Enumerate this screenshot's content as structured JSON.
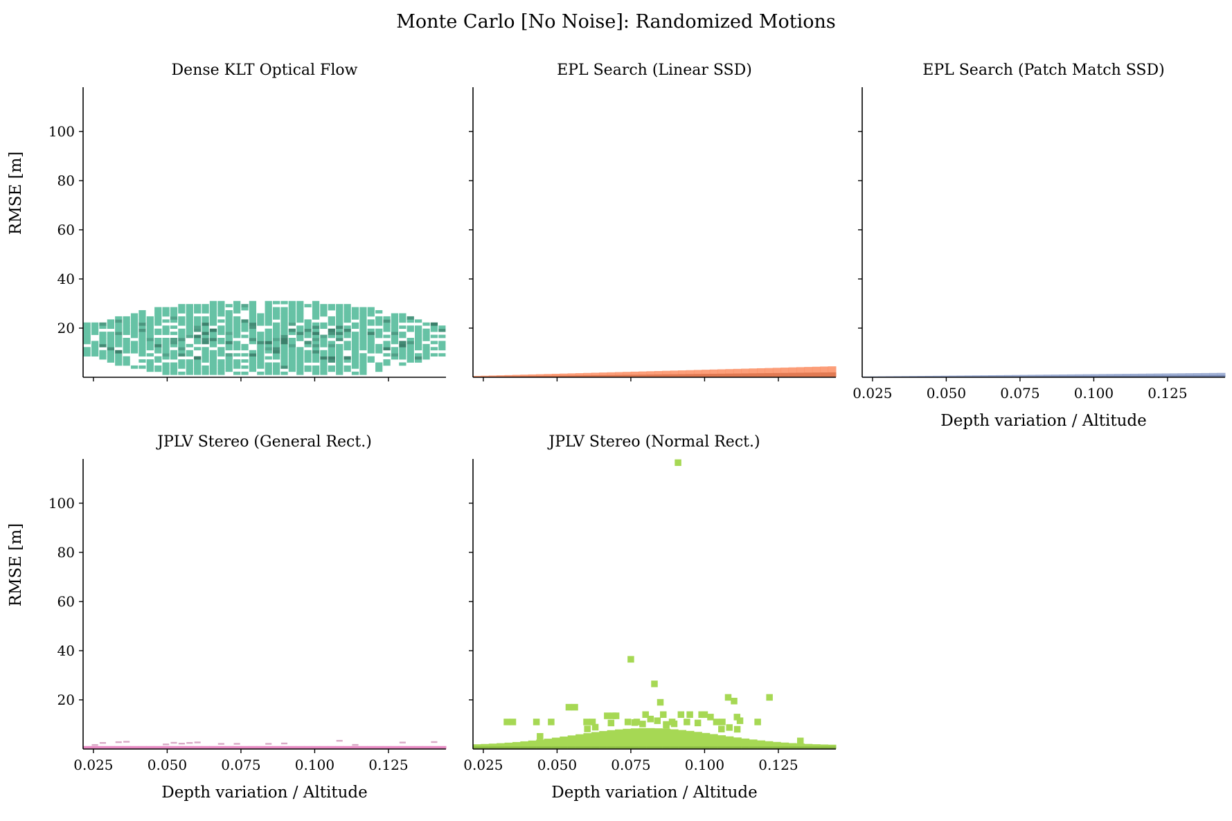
{
  "figure": {
    "title": "Monte Carlo [No Noise]: Randomized Motions"
  },
  "chart_data": {
    "type": "heatmap",
    "title": "Monte Carlo [No Noise]: Randomized Motions",
    "shared_axes": true,
    "xlim": [
      0.0215,
      0.1445
    ],
    "ylim": [
      0,
      118
    ],
    "xticks": [
      0.025,
      0.05,
      0.075,
      0.1,
      0.125
    ],
    "xtick_labels": [
      "0.025",
      "0.050",
      "0.075",
      "0.100",
      "0.125"
    ],
    "yticks": [
      20,
      40,
      60,
      80,
      100
    ],
    "ytick_labels": [
      "20",
      "40",
      "60",
      "80",
      "100"
    ],
    "xlabel": "Depth variation / Altitude",
    "ylabel": "RMSE [m]",
    "grid": false,
    "panels": [
      {
        "title": "Dense KLT Optical Flow",
        "color": "#66c2a5",
        "dark_color": "#2f6b59",
        "density": {
          "x_range": [
            0.0215,
            0.1445
          ],
          "y_center": 15,
          "y_spread": 15,
          "y_min": 1,
          "y_max": 31
        },
        "show_xlabel": false,
        "show_ylabel": true,
        "show_xticklabels": false,
        "show_yticklabels": true
      },
      {
        "title": "EPL Search (Linear SSD)",
        "color": "#fc8d62",
        "dark_color": "#b05836",
        "density": {
          "x_range": [
            0.0215,
            0.1445
          ],
          "y_at_xmin": 0.5,
          "y_at_xmax": 4.5,
          "y_min": 0
        },
        "show_xlabel": false,
        "show_ylabel": false,
        "show_xticklabels": false,
        "show_yticklabels": false
      },
      {
        "title": "EPL Search (Patch Match SSD)",
        "color": "#8da0cb",
        "dark_color": "#4f5f8a",
        "density": {
          "x_range": [
            0.0215,
            0.1445
          ],
          "y_at_xmin": 0.3,
          "y_at_xmax": 1.8,
          "y_min": 0
        },
        "show_xlabel": true,
        "show_ylabel": false,
        "show_xticklabels": true,
        "show_yticklabels": false
      },
      {
        "title": "JPLV Stereo (General Rect.)",
        "color": "#e78ac3",
        "dark_color": "#a34f82",
        "density": {
          "x_range": [
            0.0215,
            0.1445
          ],
          "y_center": 1.2,
          "y_max": 3.5,
          "y_min": 0
        },
        "show_xlabel": true,
        "show_ylabel": true,
        "show_xticklabels": true,
        "show_yticklabels": true
      },
      {
        "title": "JPLV Stereo (Normal Rect.)",
        "color": "#a6d854",
        "dark_color": "#5f8a2a",
        "density": {
          "x_range": [
            0.0215,
            0.1445
          ],
          "y_min": 0,
          "dense_y_max": 7
        },
        "outliers": [
          [
            0.091,
            116.5
          ],
          [
            0.075,
            36.5
          ],
          [
            0.083,
            26.5
          ],
          [
            0.085,
            19
          ],
          [
            0.108,
            21
          ],
          [
            0.11,
            19.5
          ],
          [
            0.122,
            21
          ],
          [
            0.054,
            17
          ],
          [
            0.056,
            17
          ],
          [
            0.067,
            13.5
          ],
          [
            0.069,
            13.5
          ],
          [
            0.07,
            13.5
          ],
          [
            0.08,
            14
          ],
          [
            0.084,
            11.5
          ],
          [
            0.086,
            14
          ],
          [
            0.089,
            11
          ],
          [
            0.092,
            14
          ],
          [
            0.095,
            14
          ],
          [
            0.099,
            14
          ],
          [
            0.1,
            14
          ],
          [
            0.102,
            13
          ],
          [
            0.104,
            11
          ],
          [
            0.111,
            13
          ],
          [
            0.112,
            11.5
          ],
          [
            0.118,
            11
          ],
          [
            0.033,
            11
          ],
          [
            0.035,
            11
          ],
          [
            0.043,
            11
          ],
          [
            0.048,
            11
          ],
          [
            0.06,
            11
          ],
          [
            0.062,
            11
          ],
          [
            0.074,
            11
          ],
          [
            0.077,
            11
          ],
          [
            0.087,
            10
          ],
          [
            0.094,
            11
          ],
          [
            0.106,
            11
          ]
        ],
        "show_xlabel": true,
        "show_ylabel": false,
        "show_xticklabels": true,
        "show_yticklabels": false
      }
    ]
  }
}
